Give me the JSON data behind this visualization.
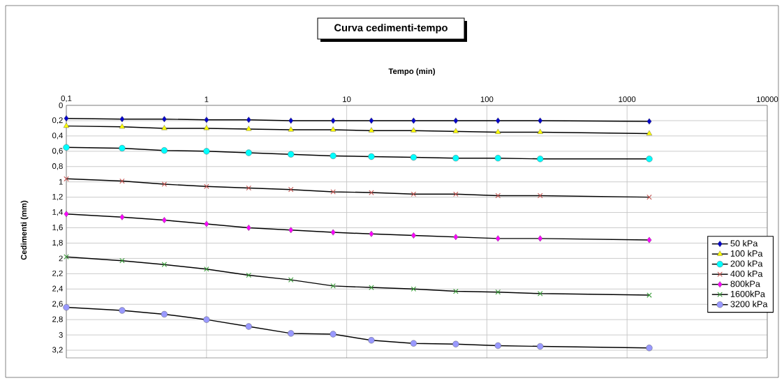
{
  "chart_data": {
    "type": "line",
    "title": "Curva cedimenti-tempo",
    "xlabel": "Tempo (min)",
    "ylabel": "Cedimenti (mm)",
    "x": [
      0.1,
      0.25,
      0.5,
      1,
      2,
      4,
      8,
      15,
      30,
      60,
      120,
      240,
      1440
    ],
    "series": [
      {
        "name": "50 kPa",
        "color": "#0000cc",
        "marker": "diamond",
        "values": [
          0.17,
          0.18,
          0.18,
          0.19,
          0.19,
          0.2,
          0.2,
          0.2,
          0.2,
          0.2,
          0.2,
          0.2,
          0.21
        ]
      },
      {
        "name": "100 kPa",
        "color": "#ffff00",
        "marker": "triangle",
        "values": [
          0.27,
          0.28,
          0.3,
          0.3,
          0.31,
          0.32,
          0.32,
          0.33,
          0.33,
          0.34,
          0.35,
          0.35,
          0.37
        ]
      },
      {
        "name": "200 kPa",
        "color": "#00ffff",
        "marker": "circle",
        "values": [
          0.55,
          0.56,
          0.59,
          0.6,
          0.62,
          0.64,
          0.66,
          0.67,
          0.68,
          0.69,
          0.69,
          0.7,
          0.7
        ]
      },
      {
        "name": "400 kPa",
        "color": "#c0504d",
        "marker": "cross",
        "values": [
          0.96,
          0.99,
          1.03,
          1.06,
          1.08,
          1.1,
          1.13,
          1.14,
          1.16,
          1.16,
          1.18,
          1.18,
          1.2
        ]
      },
      {
        "name": "800kPa",
        "color": "#ff00ff",
        "marker": "diamond",
        "values": [
          1.42,
          1.46,
          1.5,
          1.55,
          1.6,
          1.63,
          1.66,
          1.68,
          1.7,
          1.72,
          1.74,
          1.74,
          1.76
        ]
      },
      {
        "name": "1600kPa",
        "color": "#339933",
        "marker": "cross",
        "values": [
          1.98,
          2.03,
          2.08,
          2.14,
          2.22,
          2.28,
          2.36,
          2.38,
          2.4,
          2.43,
          2.44,
          2.46,
          2.48
        ]
      },
      {
        "name": "3200 kPa",
        "color": "#9999ff",
        "marker": "circle",
        "values": [
          2.64,
          2.68,
          2.73,
          2.8,
          2.89,
          2.98,
          2.99,
          3.07,
          3.11,
          3.12,
          3.14,
          3.15,
          3.17
        ]
      }
    ],
    "log": "x",
    "xlim": [
      0.1,
      10000
    ],
    "ylim": [
      3.3,
      0
    ],
    "xticks": [
      {
        "value": 0.1,
        "label": "0,1"
      },
      1,
      10,
      100,
      1000,
      10000
    ],
    "yticks": [
      0,
      {
        "value": 0.2,
        "label": "0,2"
      },
      {
        "value": 0.4,
        "label": "0,4"
      },
      {
        "value": 0.6,
        "label": "0,6"
      },
      {
        "value": 0.8,
        "label": "0,8"
      },
      1,
      {
        "value": 1.2,
        "label": "1,2"
      },
      {
        "value": 1.4,
        "label": "1,4"
      },
      {
        "value": 1.6,
        "label": "1,6"
      },
      {
        "value": 1.8,
        "label": "1,8"
      },
      2,
      {
        "value": 2.2,
        "label": "2,2"
      },
      {
        "value": 2.4,
        "label": "2,4"
      },
      {
        "value": 2.6,
        "label": "2,6"
      },
      {
        "value": 2.8,
        "label": "2,8"
      },
      3,
      {
        "value": 3.2,
        "label": "3,2"
      }
    ],
    "grid": true,
    "legend": "right"
  }
}
